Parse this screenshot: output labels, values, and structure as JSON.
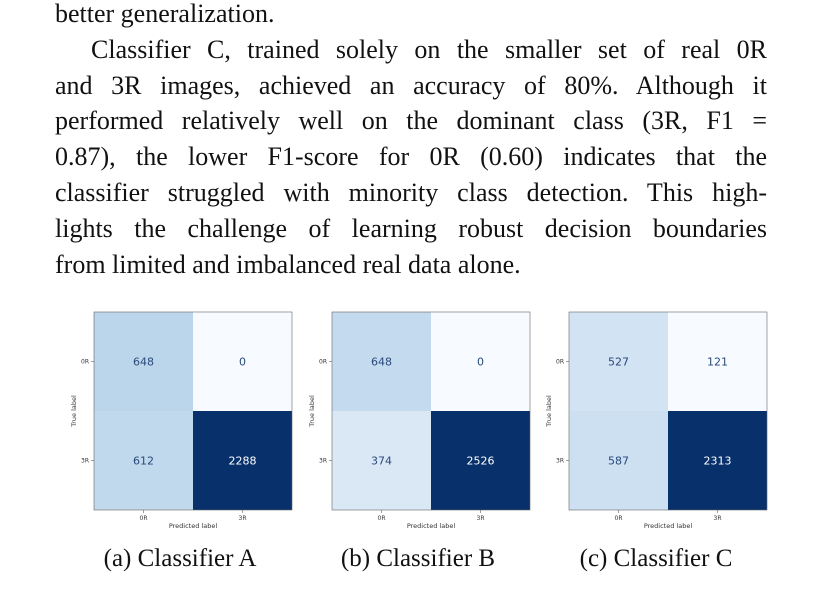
{
  "paragraph": {
    "lines": [
      "better generalization.",
      "Classifier C, trained solely on the smaller set of real 0R",
      "and 3R images, achieved an accuracy of 80%. Although it",
      "performed relatively well on the dominant class (3R, F1 =",
      "0.87), the lower F1-score for 0R (0.60) indicates that the",
      "classifier struggled with minority class detection. This high-",
      "lights the challenge of learning robust decision boundaries",
      "from limited and imbalanced real data alone."
    ]
  },
  "chart_data": [
    {
      "type": "heatmap",
      "title": "",
      "xlabel": "Predicted label",
      "ylabel": "True label",
      "x_categories": [
        "0R",
        "3R"
      ],
      "y_categories": [
        "0R",
        "3R"
      ],
      "values": [
        [
          648,
          0
        ],
        [
          612,
          2288
        ]
      ],
      "colormap": "Blues",
      "caption": "(a) Classifier A"
    },
    {
      "type": "heatmap",
      "title": "",
      "xlabel": "Predicted label",
      "ylabel": "True label",
      "x_categories": [
        "0R",
        "3R"
      ],
      "y_categories": [
        "0R",
        "3R"
      ],
      "values": [
        [
          648,
          0
        ],
        [
          374,
          2526
        ]
      ],
      "colormap": "Blues",
      "caption": "(b) Classifier B"
    },
    {
      "type": "heatmap",
      "title": "",
      "xlabel": "Predicted label",
      "ylabel": "True label",
      "x_categories": [
        "0R",
        "3R"
      ],
      "y_categories": [
        "0R",
        "3R"
      ],
      "values": [
        [
          527,
          121
        ],
        [
          587,
          2313
        ]
      ],
      "colormap": "Blues",
      "caption": "(c) Classifier C"
    }
  ]
}
